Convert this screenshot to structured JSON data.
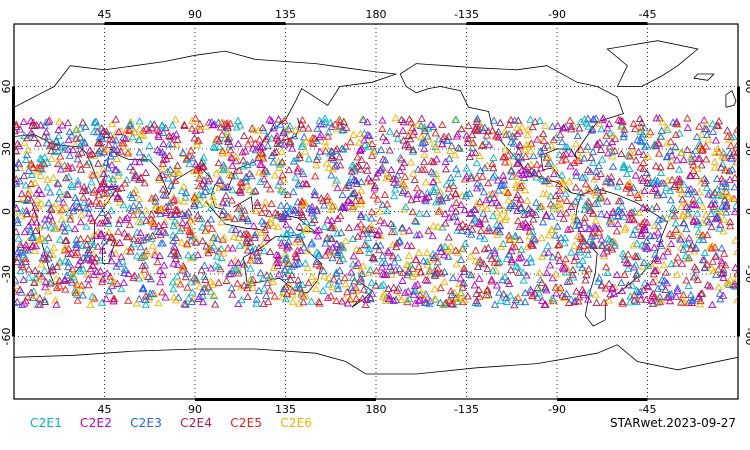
{
  "map": {
    "type": "scatter-map",
    "projection": "cylindrical equidistant",
    "lon_range": [
      0,
      360
    ],
    "lat_range": [
      -90,
      90
    ],
    "grid": true,
    "grid_style": "dotted",
    "top_ticks": [
      "45",
      "90",
      "135",
      "180",
      "-135",
      "-90",
      "-45"
    ],
    "bottom_ticks": [
      "45",
      "90",
      "135",
      "180",
      "-135",
      "-90",
      "-45"
    ],
    "left_ticks": [
      "60",
      "30",
      "0",
      "-30",
      "-60"
    ],
    "right_ticks": [
      "60",
      "30",
      "0",
      "-30",
      "-60"
    ],
    "marker": "open-triangle",
    "observation_lat_range": [
      -45,
      45
    ]
  },
  "legend": {
    "placement": "bottom-left",
    "items": [
      {
        "label": "C2E1",
        "color": "#00b4c8"
      },
      {
        "label": "C2E2",
        "color": "#b400c8"
      },
      {
        "label": "C2E3",
        "color": "#1e64e6"
      },
      {
        "label": "C2E4",
        "color": "#a01e50"
      },
      {
        "label": "C2E5",
        "color": "#e61e1e"
      },
      {
        "label": "C2E6",
        "color": "#f0b400"
      }
    ]
  },
  "stamp": "STARwet.2023-09-27"
}
